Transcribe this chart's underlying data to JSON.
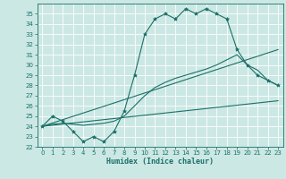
{
  "xlabel": "Humidex (Indice chaleur)",
  "ylabel": "",
  "background_color": "#cce8e4",
  "grid_color": "#b0d8d2",
  "line_color": "#1a7068",
  "xlim": [
    -0.5,
    23.5
  ],
  "ylim": [
    22,
    36
  ],
  "yticks": [
    22,
    23,
    24,
    25,
    26,
    27,
    28,
    29,
    30,
    31,
    32,
    33,
    34,
    35
  ],
  "xticks": [
    0,
    1,
    2,
    3,
    4,
    5,
    6,
    7,
    8,
    9,
    10,
    11,
    12,
    13,
    14,
    15,
    16,
    17,
    18,
    19,
    20,
    21,
    22,
    23
  ],
  "line1_x": [
    0,
    1,
    2,
    3,
    4,
    5,
    6,
    7,
    8,
    9,
    10,
    11,
    12,
    13,
    14,
    15,
    16,
    17,
    18,
    19,
    20,
    21,
    22,
    23
  ],
  "line1_y": [
    24.0,
    25.0,
    24.5,
    23.5,
    22.5,
    23.0,
    22.5,
    23.5,
    25.5,
    29.0,
    33.0,
    34.5,
    35.0,
    34.5,
    35.5,
    35.0,
    35.5,
    35.0,
    34.5,
    31.5,
    30.0,
    29.0,
    28.5,
    28.0
  ],
  "line2_x": [
    0,
    1,
    2,
    3,
    4,
    5,
    6,
    7,
    8,
    9,
    10,
    11,
    12,
    13,
    14,
    15,
    16,
    17,
    18,
    19,
    20,
    21,
    22,
    23
  ],
  "line2_y": [
    24.0,
    24.2,
    24.3,
    24.2,
    24.1,
    24.2,
    24.3,
    24.5,
    25.0,
    26.0,
    27.0,
    27.8,
    28.3,
    28.7,
    29.0,
    29.3,
    29.6,
    30.0,
    30.5,
    31.0,
    30.0,
    29.5,
    28.5,
    28.0
  ],
  "line3_x": [
    0,
    23
  ],
  "line3_y": [
    24.0,
    31.5
  ],
  "line4_x": [
    0,
    23
  ],
  "line4_y": [
    24.0,
    26.5
  ]
}
